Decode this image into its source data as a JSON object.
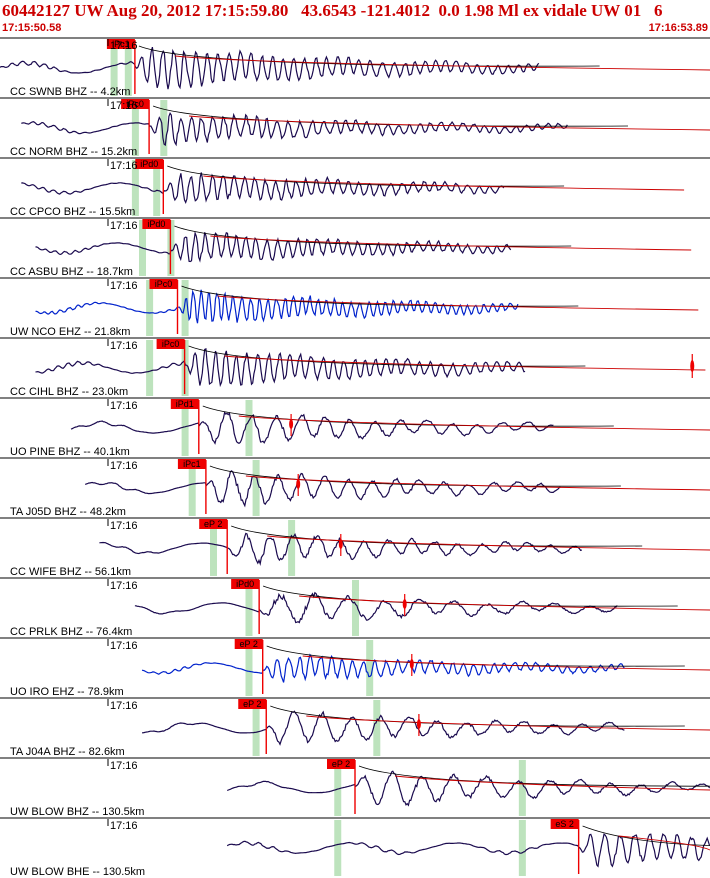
{
  "header": {
    "title": "60442127 UW Aug 20, 2012 17:15:59.80   43.6543 -121.4012  0.0 1.98 Ml ex vidale UW 01   6",
    "start_time": "17:15:50.58",
    "end_time": "17:16:53.89"
  },
  "colors": {
    "header_text": "#cc0000",
    "trace_dark": "#1a0a4e",
    "trace_blue": "#0022cc",
    "pick": "#ee0000",
    "window": "#bde3bd",
    "decay_black": "#000000",
    "decay_red": "#cc0000"
  },
  "chart_data": {
    "type": "waveform",
    "time_axis": {
      "start": "17:15:50.58",
      "end": "17:16:53.89",
      "tick_label": "17:16"
    },
    "traces": [
      {
        "label": "CC SWNB BHZ -- 4.2km",
        "tick_label": "17:16",
        "pick": "iPc1",
        "color": "dark",
        "t_start": 0.0,
        "t_end": 0.76,
        "p_time": 0.19,
        "windows": [
          0.16,
          0.18
        ],
        "amp": 1.0,
        "freq": 70
      },
      {
        "label": "CC NORM BHZ -- 15.2km",
        "tick_label": "17:16",
        "pick": "iPc0",
        "color": "dark",
        "t_start": 0.03,
        "t_end": 0.8,
        "p_time": 0.21,
        "windows": [
          0.19,
          0.23
        ],
        "amp": 0.7,
        "freq": 70
      },
      {
        "label": "CC CPCO BHZ -- 15.5km",
        "tick_label": "17:16",
        "pick": "iPd0",
        "color": "dark",
        "t_start": 0.03,
        "t_end": 0.71,
        "p_time": 0.23,
        "windows": [
          0.19,
          0.22
        ],
        "amp": 0.7,
        "freq": 70
      },
      {
        "label": "CC ASBU BHZ -- 18.7km",
        "tick_label": "17:16",
        "pick": "iPd0",
        "color": "dark",
        "t_start": 0.05,
        "t_end": 0.72,
        "p_time": 0.24,
        "windows": [
          0.2,
          0.24
        ],
        "amp": 0.7,
        "freq": 75
      },
      {
        "label": "UW NCO EHZ -- 21.8km",
        "tick_label": "17:16",
        "pick": "iPc0",
        "color": "blue",
        "t_start": 0.05,
        "t_end": 0.73,
        "p_time": 0.25,
        "windows": [
          0.21,
          0.26
        ],
        "amp": 0.75,
        "freq": 90
      },
      {
        "label": "CC CIHL BHZ -- 23.0km",
        "tick_label": "17:16",
        "pick": "iPc0",
        "color": "dark",
        "t_start": 0.05,
        "t_end": 0.74,
        "p_time": 0.26,
        "windows": [
          0.21,
          0.26
        ],
        "amp": 0.9,
        "freq": 70,
        "extra_pick_time": 0.975
      },
      {
        "label": "UO PINE BHZ -- 40.1km",
        "tick_label": "17:16",
        "pick": "iPd1",
        "color": "dark",
        "t_start": 0.1,
        "t_end": 0.78,
        "p_time": 0.28,
        "windows": [
          0.26,
          0.35
        ],
        "amp": 0.8,
        "freq": 30,
        "s_pick_time": 0.41
      },
      {
        "label": "TA J05D BHZ -- 48.2km",
        "tick_label": "17:16",
        "pick": "iPc1",
        "color": "dark",
        "t_start": 0.12,
        "t_end": 0.79,
        "p_time": 0.29,
        "windows": [
          0.27,
          0.36
        ],
        "amp": 0.8,
        "freq": 32,
        "s_pick_time": 0.42
      },
      {
        "label": "CC WIFE BHZ -- 56.1km",
        "tick_label": "17:16",
        "pick": "eP 2",
        "color": "dark",
        "t_start": 0.14,
        "t_end": 0.82,
        "p_time": 0.32,
        "windows": [
          0.3,
          0.41
        ],
        "amp": 0.7,
        "freq": 32,
        "s_pick_time": 0.48
      },
      {
        "label": "CC PRLK BHZ -- 76.4km",
        "tick_label": "17:16",
        "pick": "iPd0",
        "color": "dark",
        "t_start": 0.19,
        "t_end": 0.87,
        "p_time": 0.365,
        "windows": [
          0.35,
          0.5
        ],
        "amp": 0.7,
        "freq": 22,
        "s_pick_time": 0.57
      },
      {
        "label": "UO IRO EHZ -- 78.9km",
        "tick_label": "17:16",
        "pick": "eP 2",
        "color": "blue",
        "t_start": 0.2,
        "t_end": 0.88,
        "p_time": 0.37,
        "windows": [
          0.35,
          0.52
        ],
        "amp": 0.6,
        "freq": 70,
        "s_pick_time": 0.58
      },
      {
        "label": "TA J04A BHZ -- 82.6km",
        "tick_label": "17:16",
        "pick": "eP 2",
        "color": "dark",
        "t_start": 0.2,
        "t_end": 0.88,
        "p_time": 0.375,
        "windows": [
          0.36,
          0.53
        ],
        "amp": 0.8,
        "freq": 26,
        "s_pick_time": 0.59
      },
      {
        "label": "UW BLOW BHZ -- 130.5km",
        "tick_label": "17:16",
        "pick": "eP 2",
        "color": "dark",
        "t_start": 0.32,
        "t_end": 1.0,
        "p_time": 0.5,
        "windows": [
          0.475,
          0.735
        ],
        "amp": 0.8,
        "freq": 24
      },
      {
        "label": "UW BLOW BHE -- 130.5km",
        "tick_label": "17:16",
        "pick": "eS 2",
        "color": "dark",
        "t_start": 0.32,
        "t_end": 1.0,
        "p_time": 0.815,
        "windows": [
          0.475,
          0.735
        ],
        "amp": 0.8,
        "freq": 50
      }
    ]
  }
}
